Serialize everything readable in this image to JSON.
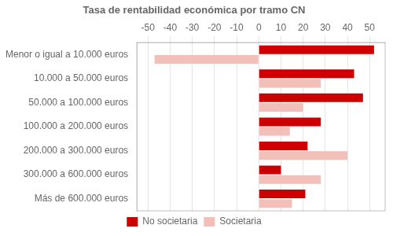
{
  "chart_data": {
    "type": "bar",
    "orientation": "horizontal",
    "title": "Tasa de rentabilidad económica por tramo CN",
    "categories": [
      "Menor o igual a 10.000 euros",
      "10.000 a 50.000 euros",
      "50.000 a 100.000 euros",
      "100.000 a 200.000 euros",
      "200.000 a 300.000 euros",
      "300.000 a 600.000 euros",
      "Más de 600.000 euros"
    ],
    "series": [
      {
        "name": "No societaria",
        "color": "#cc0000",
        "values": [
          52,
          43,
          47,
          28,
          22,
          10,
          21
        ]
      },
      {
        "name": "Societaria",
        "color": "#f2c0b8",
        "values": [
          -47,
          28,
          20,
          14,
          40,
          28,
          15
        ]
      }
    ],
    "xlim": [
      -55,
      57
    ],
    "xticks": [
      -50,
      -40,
      -30,
      -20,
      -10,
      0,
      10,
      20,
      30,
      40,
      50
    ],
    "grid": true,
    "legend": "bottom"
  }
}
